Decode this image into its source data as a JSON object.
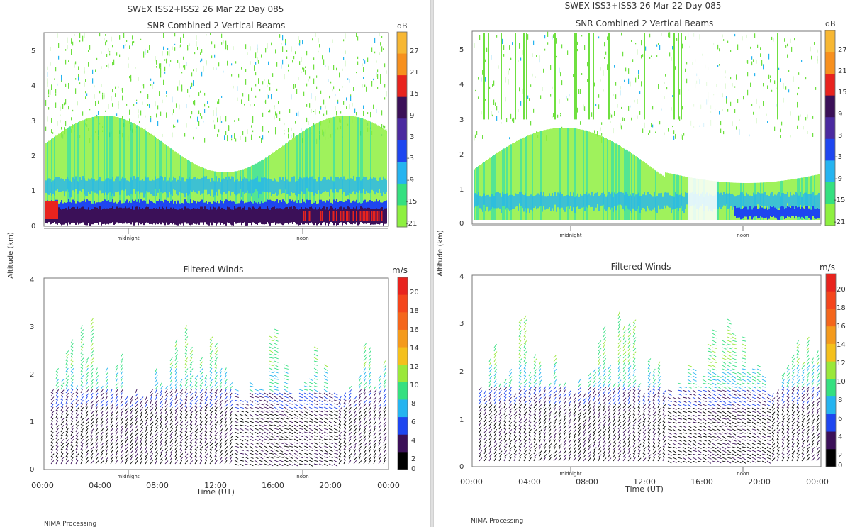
{
  "left": {
    "header": "SWEX ISS2+ISS2  26 Mar 22 Day 085",
    "snr_title": "SNR Combined 2 Vertical Beams",
    "snr_unit": "dB",
    "snr_ticks": [
      "27",
      "21",
      "15",
      "9",
      "3",
      "-3",
      "-9",
      "-15",
      "-21"
    ],
    "alt_ticks_top": [
      "5",
      "4",
      "3",
      "2",
      "1",
      "0"
    ],
    "wind_title": "Filtered Winds",
    "wind_unit": "m/s",
    "wind_ticks": [
      "20",
      "18",
      "16",
      "14",
      "12",
      "10",
      "8",
      "6",
      "4",
      "2",
      "0"
    ],
    "alt_ticks_bot": [
      "4",
      "3",
      "2",
      "1",
      "0"
    ],
    "time_ticks": [
      "00:00",
      "04:00",
      "08:00",
      "12:00",
      "16:00",
      "20:00",
      "00:00"
    ],
    "midnight": "midnight",
    "noon": "noon",
    "ylabel": "Altitude (km)",
    "xlabel": "Time (UT)",
    "footer": "NIMA Processing"
  },
  "right": {
    "header": "SWEX ISS3+ISS3  26 Mar 22 Day 085",
    "snr_title": "SNR Combined 2 Vertical Beams",
    "snr_unit": "dB",
    "snr_ticks": [
      "27",
      "21",
      "15",
      "9",
      "3",
      "-3",
      "-9",
      "-15",
      "-21"
    ],
    "alt_ticks_top": [
      "5",
      "4",
      "3",
      "2",
      "1",
      "0"
    ],
    "wind_title": "Filtered Winds",
    "wind_unit": "m/s",
    "wind_ticks": [
      "20",
      "18",
      "16",
      "14",
      "12",
      "10",
      "8",
      "6",
      "4",
      "2",
      "0"
    ],
    "alt_ticks_bot": [
      "4",
      "3",
      "2",
      "1",
      "0"
    ],
    "time_ticks": [
      "00:00",
      "04:00",
      "08:00",
      "12:00",
      "16:00",
      "20:00",
      "00:00"
    ],
    "midnight": "midnight",
    "noon": "noon",
    "ylabel": "Altitude (km)",
    "xlabel": "Time (UT)",
    "footer": "NIMA Processing"
  },
  "colors": {
    "snr_scale": [
      "#f7b733",
      "#f7901e",
      "#e8231e",
      "#3b1058",
      "#4b2aa0",
      "#1e46f0",
      "#25b4f0",
      "#35e080",
      "#8ef040"
    ],
    "wind_scale": [
      "#e8231e",
      "#f4451c",
      "#f4661c",
      "#f49a1c",
      "#f4c01c",
      "#9ae83a",
      "#35e080",
      "#25b4f0",
      "#1e46f0",
      "#3b1058",
      "#000000"
    ]
  }
}
